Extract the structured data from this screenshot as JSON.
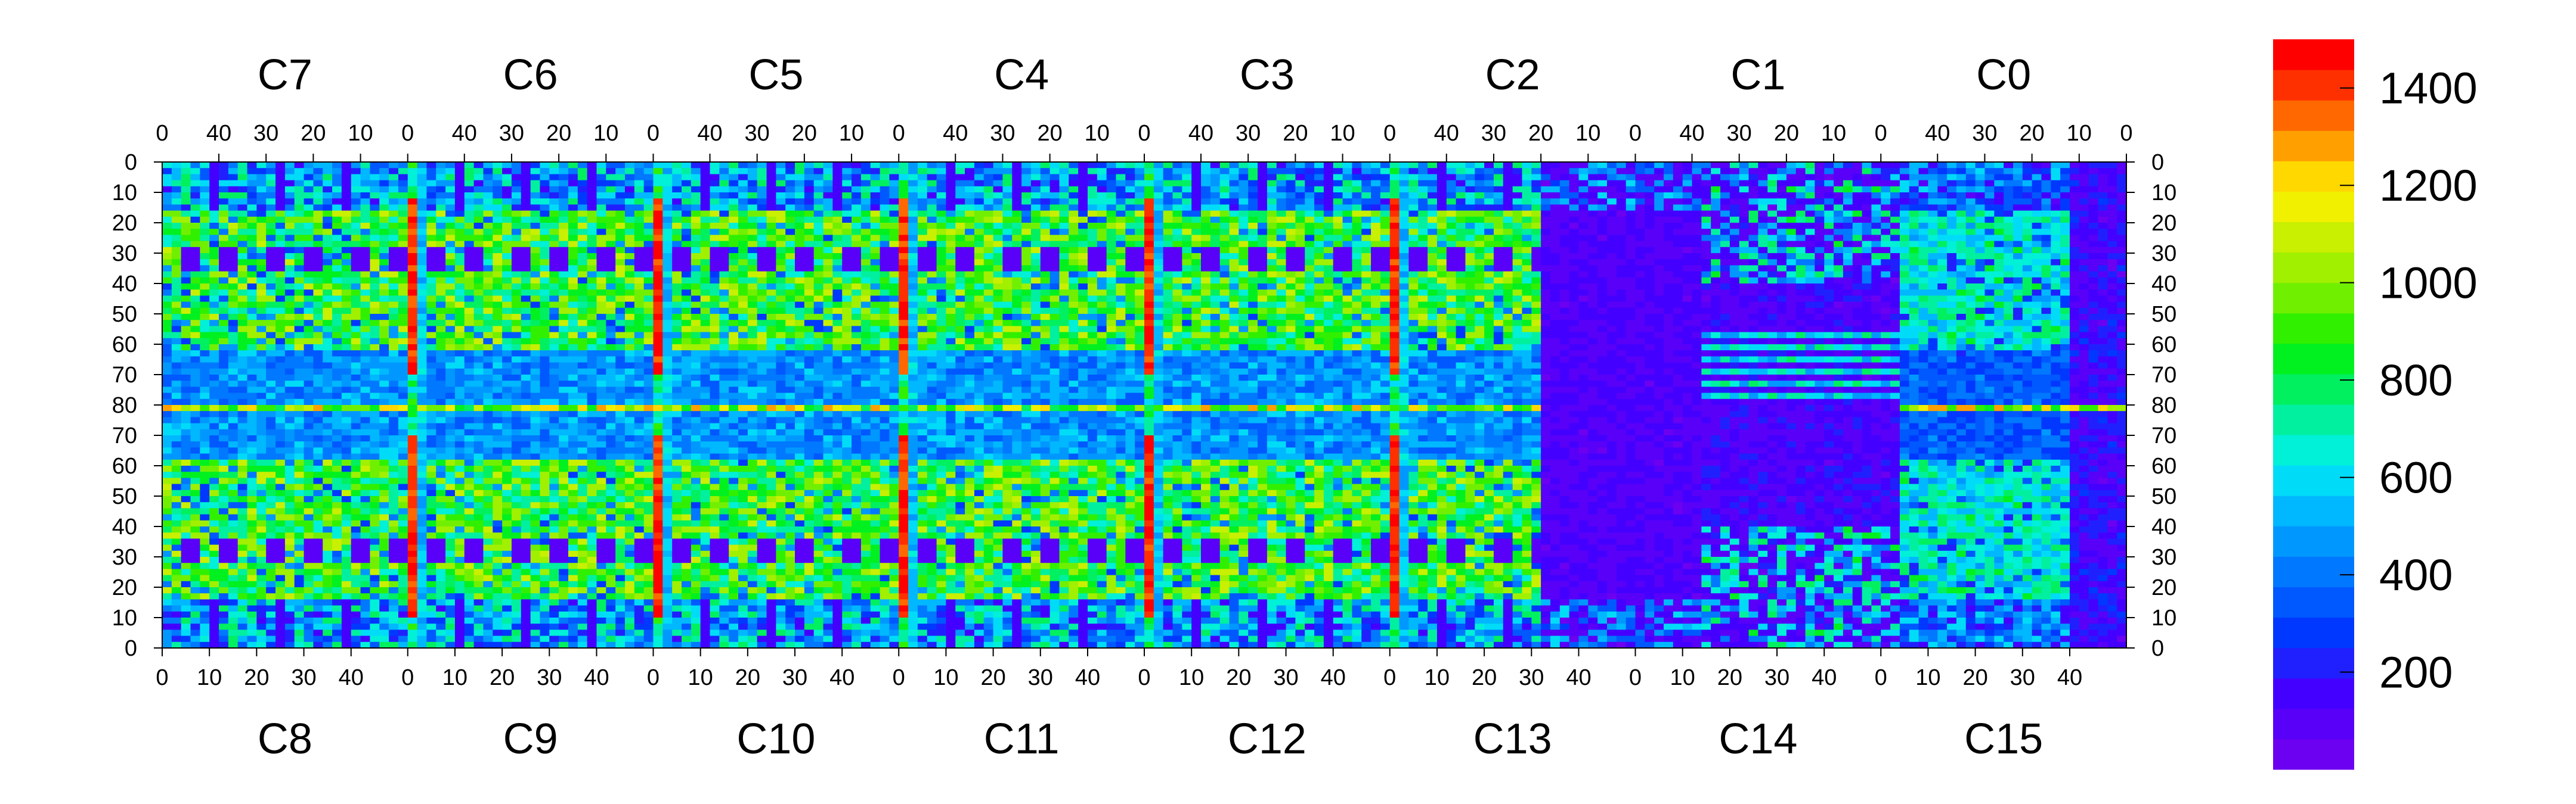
{
  "chart_data": {
    "type": "heatmap",
    "title": "",
    "xlabel": "",
    "ylabel": "",
    "grid": false,
    "top_chips": [
      "C7",
      "C6",
      "C5",
      "C4",
      "C3",
      "C2",
      "C1",
      "C0"
    ],
    "bottom_chips": [
      "C8",
      "C9",
      "C10",
      "C11",
      "C12",
      "C13",
      "C14",
      "C15"
    ],
    "top_x_ticks": [
      "40",
      "30",
      "20",
      "10",
      "0"
    ],
    "bottom_x_ticks": [
      "0",
      "10",
      "20",
      "30",
      "40"
    ],
    "left_y_ticks": [
      "0",
      "10",
      "20",
      "30",
      "40",
      "50",
      "60",
      "70",
      "80",
      "70",
      "60",
      "50",
      "40",
      "30",
      "20",
      "10",
      "0"
    ],
    "right_y_ticks": [
      "0",
      "10",
      "20",
      "30",
      "40",
      "50",
      "60",
      "70",
      "80",
      "70",
      "60",
      "50",
      "40",
      "30",
      "20",
      "10",
      "0"
    ],
    "columns_per_chip": 52,
    "rows_per_half": 80,
    "zlim": [
      0,
      1500
    ],
    "colorbar_ticks": [
      "200",
      "400",
      "600",
      "800",
      "1000",
      "1200",
      "1400"
    ],
    "colorbar_tick_values": [
      200,
      400,
      600,
      800,
      1000,
      1200,
      1400
    ],
    "colormap": [
      "#6c00f0",
      "#5800f8",
      "#4400ff",
      "#2020ff",
      "#0038ff",
      "#0058ff",
      "#0078ff",
      "#0098ff",
      "#00b8ff",
      "#00dcf8",
      "#00f0d8",
      "#00f0a0",
      "#00f060",
      "#00f020",
      "#30f000",
      "#70f000",
      "#a0f000",
      "#c8f000",
      "#f0f000",
      "#ffd800",
      "#ffa000",
      "#ff6800",
      "#ff3000",
      "#ff0000"
    ],
    "regions": {
      "hot_bus_columns": [
        0,
        1,
        2,
        3,
        4,
        5,
        6,
        7
      ],
      "hot_bus_value": 1350,
      "warm_band_rows_upper": [
        16,
        62
      ],
      "warm_band_rows_lower": [
        16,
        62
      ],
      "cool_middle_rows": [
        62,
        98
      ],
      "center_line_value": 1300,
      "sparse_region_columns": [
        5.6,
        6.3
      ],
      "low_floor_value": 60
    }
  }
}
